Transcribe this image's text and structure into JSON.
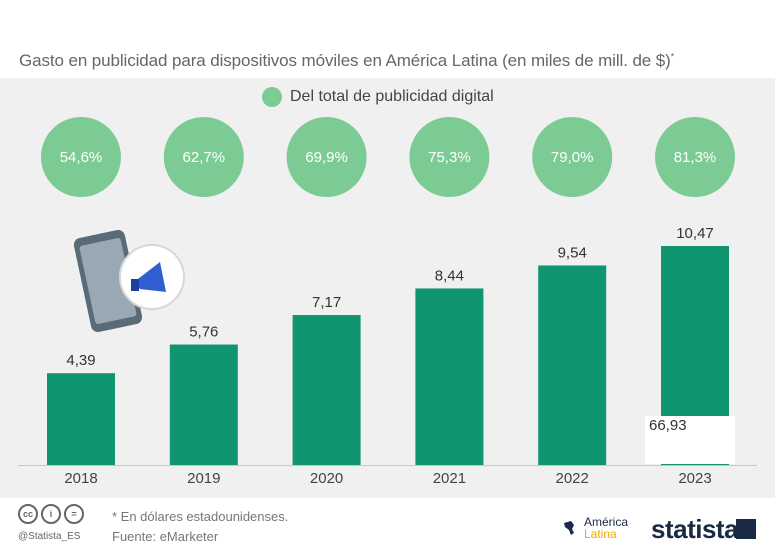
{
  "title": "Gasto en publicidad para dispositivos móviles en América Latina (en miles de mill. de $)",
  "title_mark": "*",
  "legend": {
    "label": "Del total de publicidad digital",
    "color": "#7dcb94"
  },
  "colors": {
    "bar": "#0f9570",
    "bubble": "#7dcb94",
    "background": "#f0f0f0"
  },
  "chart_data": {
    "type": "bar",
    "title": "Gasto en publicidad para dispositivos móviles en América Latina (en miles de mill. de $)",
    "categories": [
      "2018",
      "2019",
      "2020",
      "2021",
      "2022",
      "2023"
    ],
    "values": [
      4.39,
      5.76,
      7.17,
      8.44,
      9.54,
      10.47
    ],
    "value_labels": [
      "4,39",
      "5,76",
      "7,17",
      "8,44",
      "9,54",
      "10,47"
    ],
    "share_of_digital": [
      "54,6%",
      "62,7%",
      "69,9%",
      "75,3%",
      "79,0%",
      "81,3%"
    ],
    "ylim": [
      0,
      10.47
    ],
    "grid": false,
    "legend_position": "top-center"
  },
  "overlay_value": "66,93",
  "icon": "phone-megaphone-icon",
  "footnote": "* En dólares estadounidenses.",
  "source": "Fuente: eMarketer",
  "handle": "@Statista_ES",
  "partner": {
    "line1": "América",
    "line2": "Latina"
  },
  "brand": "statista"
}
